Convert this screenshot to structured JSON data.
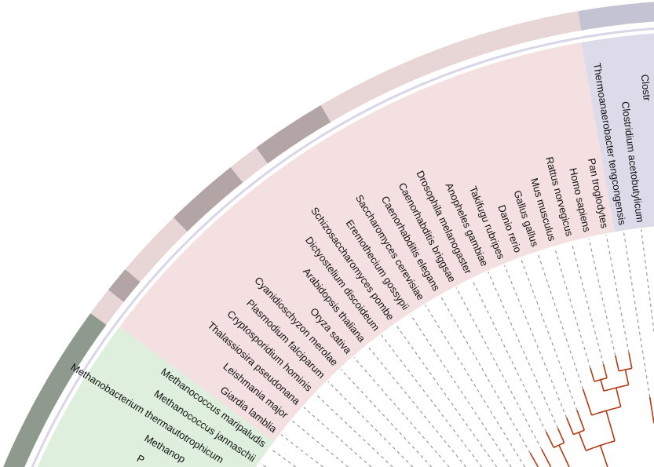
{
  "tree": {
    "leaves": [
      {
        "label": "Clostr",
        "group": "bacteria"
      },
      {
        "label": "Clostridium acetobutylicum",
        "group": "bacteria"
      },
      {
        "label": "Thermoanaerobacter tengcongensis",
        "group": "bacteria"
      },
      {
        "label": "Pan troglodytes",
        "group": "eukaryota"
      },
      {
        "label": "Homo sapiens",
        "group": "eukaryota"
      },
      {
        "label": "Rattus norvegicus",
        "group": "eukaryota"
      },
      {
        "label": "Mus musculus",
        "group": "eukaryota"
      },
      {
        "label": "Gallus gallus",
        "group": "eukaryota"
      },
      {
        "label": "Danio rerio",
        "group": "eukaryota"
      },
      {
        "label": "Takifugu rubripes",
        "group": "eukaryota"
      },
      {
        "label": "Anopheles gambiae",
        "group": "eukaryota"
      },
      {
        "label": "Drosophila melanogaster",
        "group": "eukaryota"
      },
      {
        "label": "Caenorhabditis briggsae",
        "group": "eukaryota"
      },
      {
        "label": "Caenorhabditis elegans",
        "group": "eukaryota"
      },
      {
        "label": "Saccharomyces cerevisiae",
        "group": "eukaryota"
      },
      {
        "label": "Eremothecium gossypii",
        "group": "eukaryota"
      },
      {
        "label": "Schizosaccharomyces pombe",
        "group": "eukaryota"
      },
      {
        "label": "Dictyostelium discoideum",
        "group": "eukaryota"
      },
      {
        "label": "Arabidopsis thaliana",
        "group": "eukaryota"
      },
      {
        "label": "Oryza sativa",
        "group": "eukaryota"
      },
      {
        "label": "Cyanidioschyzon merolae",
        "group": "eukaryota"
      },
      {
        "label": "Plasmodium falciparum",
        "group": "eukaryota"
      },
      {
        "label": "Cryptosporidium hominis",
        "group": "eukaryota"
      },
      {
        "label": "Thalassiosira pseudonana",
        "group": "eukaryota"
      },
      {
        "label": "Leishmania major",
        "group": "eukaryota"
      },
      {
        "label": "Giardia lamblia",
        "group": "eukaryota"
      },
      {
        "label": "Methanococcus maripaludis",
        "group": "archaea"
      },
      {
        "label": "Methanococcus jannaschii",
        "group": "archaea"
      },
      {
        "label": "Methanobacterium thermautotrophicum",
        "group": "archaea"
      },
      {
        "label": "Methanop",
        "group": "archaea"
      },
      {
        "label": "P",
        "group": "archaea"
      }
    ]
  },
  "colors": {
    "branch": "#b23a14",
    "dash": "#999999",
    "bg_bacteria": "#dddbea",
    "bg_eukaryota": "#f5e0e1",
    "bg_archaea": "#dfefdd",
    "ring_bacteria": "#c4c3d4",
    "ring_light": "#e8d5d6",
    "ring_dark": "#b3a5a5",
    "ring_archaea": "#8f9a8e",
    "ring_line": "#d8d6e8"
  }
}
